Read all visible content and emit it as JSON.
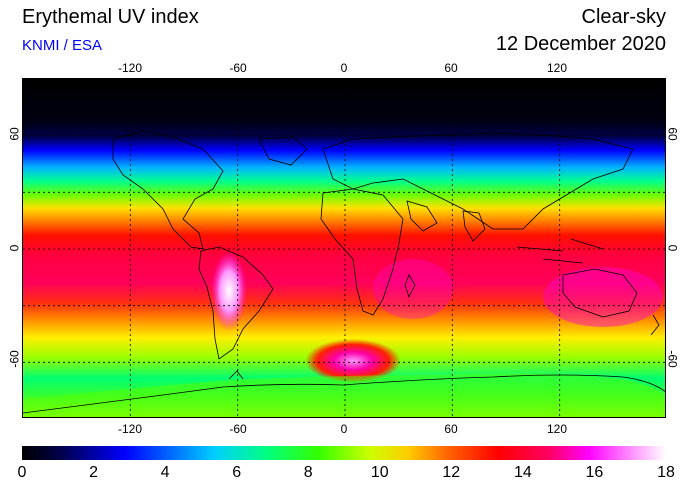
{
  "header": {
    "title": "Erythemal UV index",
    "credit": "KNMI / ESA",
    "product": "Clear-sky",
    "date": "12 December 2020"
  },
  "map": {
    "longitude_ticks": [
      "-120",
      "-60",
      "0",
      "60",
      "120"
    ],
    "latitude_ticks": [
      "60",
      "0",
      "-60"
    ],
    "grid": "dotted",
    "projection": "equirectangular",
    "palette_stops": [
      "#000000",
      "#00004a",
      "#0000ff",
      "#00d0ff",
      "#00ff80",
      "#33ff00",
      "#ccff00",
      "#ffcc00",
      "#ff6600",
      "#ff0000",
      "#ff0066",
      "#ff00ff",
      "#ff99ff",
      "#ffffff"
    ]
  },
  "colorbar": {
    "labels": [
      "0",
      "2",
      "4",
      "6",
      "8",
      "10",
      "12",
      "14",
      "16",
      "18"
    ],
    "range": [
      0,
      18
    ]
  }
}
